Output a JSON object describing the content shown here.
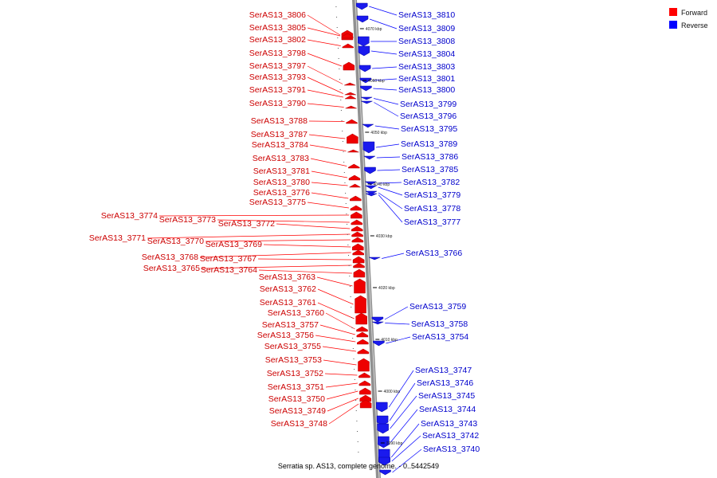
{
  "legend": [
    {
      "label": "Forward",
      "color": "#ff0000"
    },
    {
      "label": "Reverse",
      "color": "#0000ff"
    }
  ],
  "caption": "Serratia sp. AS13, complete genome. - 0..5442549",
  "ticks": [
    "4070 kbp",
    "4060 kbp",
    "4050 kbp",
    "4040 kbp",
    "4030 kbp",
    "4020 kbp",
    "4010 kbp",
    "4000 kbp",
    "3990 kbp"
  ],
  "forward_genes": [
    "SerAS13_3806",
    "SerAS13_3805",
    "SerAS13_3802",
    "SerAS13_3798",
    "SerAS13_3797",
    "SerAS13_3793",
    "SerAS13_3791",
    "SerAS13_3790",
    "SerAS13_3788",
    "SerAS13_3787",
    "SerAS13_3784",
    "SerAS13_3783",
    "SerAS13_3781",
    "SerAS13_3780",
    "SerAS13_3776",
    "SerAS13_3775",
    "SerAS13_3774",
    "SerAS13_3773",
    "SerAS13_3772",
    "SerAS13_3771",
    "SerAS13_3770",
    "SerAS13_3769",
    "SerAS13_3768",
    "SerAS13_3767",
    "SerAS13_3765",
    "SerAS13_3764",
    "SerAS13_3763",
    "SerAS13_3762",
    "SerAS13_3761",
    "SerAS13_3760",
    "SerAS13_3757",
    "SerAS13_3756",
    "SerAS13_3755",
    "SerAS13_3753",
    "SerAS13_3752",
    "SerAS13_3751",
    "SerAS13_3750",
    "SerAS13_3749",
    "SerAS13_3748"
  ],
  "reverse_genes": [
    "SerAS13_3810",
    "SerAS13_3809",
    "SerAS13_3808",
    "SerAS13_3804",
    "SerAS13_3803",
    "SerAS13_3801",
    "SerAS13_3800",
    "SerAS13_3799",
    "SerAS13_3796",
    "SerAS13_3795",
    "SerAS13_3789",
    "SerAS13_3786",
    "SerAS13_3785",
    "SerAS13_3782",
    "SerAS13_3779",
    "SerAS13_3778",
    "SerAS13_3777",
    "SerAS13_3766",
    "SerAS13_3759",
    "SerAS13_3758",
    "SerAS13_3754",
    "SerAS13_3747",
    "SerAS13_3746",
    "SerAS13_3745",
    "SerAS13_3744",
    "SerAS13_3743",
    "SerAS13_3742",
    "SerAS13_3740"
  ]
}
